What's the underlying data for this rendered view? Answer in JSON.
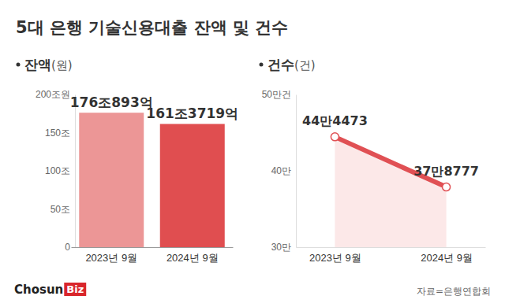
{
  "title": "5대 은행 기술신용대출 잔액 및 건수",
  "source": "자료=은행연합회",
  "logo": [
    "Chosun",
    "Biz"
  ],
  "chart_data": [
    {
      "type": "bar",
      "title": "잔액",
      "subtitle": "(원)",
      "categories": [
        "2023년 9월",
        "2024년 9월"
      ],
      "values": [
        176.0893,
        161.3719
      ],
      "value_labels": [
        "176조893억",
        "161조3719억"
      ],
      "colors": [
        "#ec9696",
        "#e04e50"
      ],
      "ylim": [
        0,
        200
      ],
      "yticks": [
        0,
        {
          "value": 50,
          "label": "50조"
        },
        {
          "value": 100,
          "label": "100조"
        },
        {
          "value": 150,
          "label": "150조"
        },
        {
          "value": 200,
          "label": "200조원"
        }
      ],
      "grid": false,
      "data_labels": true
    },
    {
      "type": "line",
      "title": "건수",
      "subtitle": "(건)",
      "categories": [
        "2023년 9월",
        "2024년 9월"
      ],
      "values": [
        44.4473,
        37.8777
      ],
      "value_labels": [
        "44만4473",
        "37만8777"
      ],
      "color": "#e05054",
      "marker": "circle",
      "ylim": [
        30,
        50
      ],
      "yticks": [
        {
          "value": 30,
          "label": "30만"
        },
        {
          "value": 40,
          "label": "40만"
        },
        {
          "value": 50,
          "label": "50만건"
        }
      ],
      "grid": false,
      "data_labels": true
    }
  ]
}
